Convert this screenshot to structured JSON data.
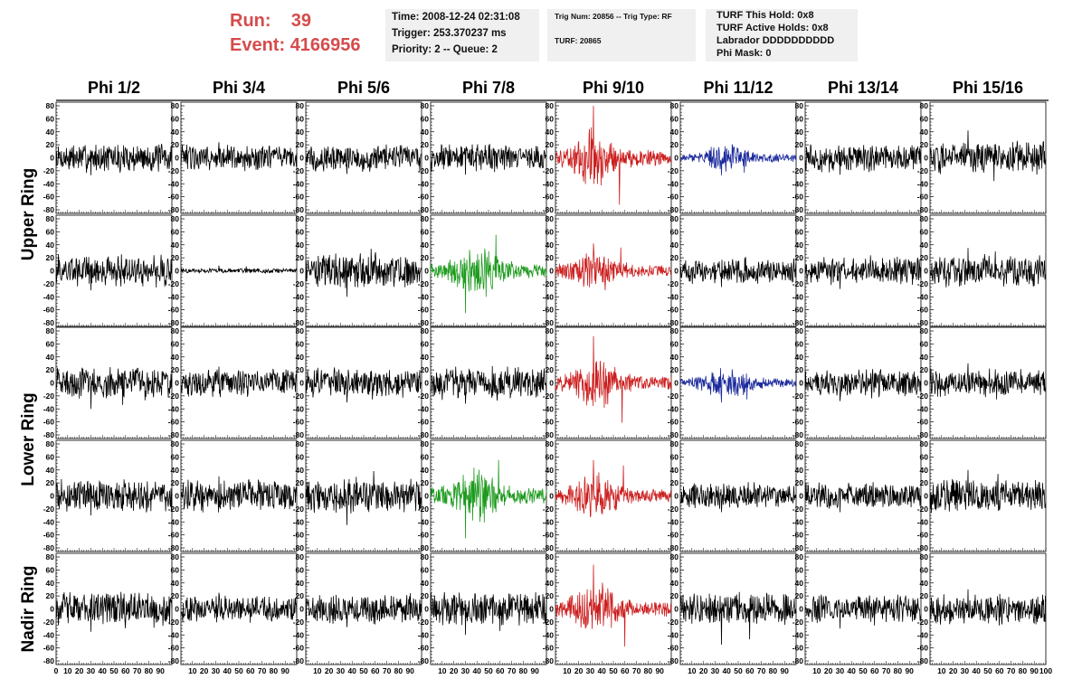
{
  "header": {
    "run_label": "Run:",
    "run_value": "39",
    "event_label": "Event:",
    "event_value": "4166956",
    "time_line": "Time: 2008-12-24 02:31:08",
    "trigger_line": "Trigger: 253.370237 ms",
    "priority_line": "Priority: 2 -- Queue: 2",
    "trig_num_line": "Trig Num: 20856 -- Trig Type: RF",
    "turf_line": "TURF: 20865",
    "turf_this_hold_line": "TURF This Hold: 0x8",
    "turf_active_holds_line": "TURF Active Holds: 0x8",
    "labrador_line": "Labrador DDDDDDDDDD",
    "phi_mask_line": "Phi Mask: 0"
  },
  "colors": {
    "run_text": "#d64b4b",
    "info_box_bg": "#f0f0f0",
    "trace_default": "#000000",
    "trace_red": "#cc1f1f",
    "trace_green": "#1d9a1d",
    "trace_blue": "#1c2a9c"
  },
  "chart_data": {
    "type": "line",
    "description_of_layout": "5 rows x 8 columns of waveform panels",
    "columns": [
      "Phi 1/2",
      "Phi 3/4",
      "Phi 5/6",
      "Phi 7/8",
      "Phi 9/10",
      "Phi 11/12",
      "Phi 13/14",
      "Phi 15/16"
    ],
    "ring_labels": [
      {
        "label": "Upper Ring",
        "rows": [
          0,
          1
        ]
      },
      {
        "label": "Lower Ring",
        "rows": [
          2,
          3
        ]
      },
      {
        "label": "Nadir Ring",
        "rows": [
          4
        ]
      }
    ],
    "xlim": [
      0,
      100
    ],
    "ylim": [
      -80,
      80
    ],
    "y_ticks": [
      80,
      60,
      40,
      20,
      0,
      -20,
      -40,
      -60,
      -80
    ],
    "y_tick_labels": [
      "80",
      "60",
      "40",
      "20",
      "0",
      "-20",
      "-40",
      "-60",
      "-80"
    ],
    "x_ticks": [
      0,
      10,
      20,
      30,
      40,
      50,
      60,
      70,
      80,
      90,
      100
    ],
    "x_tick_labels": [
      "0",
      "10",
      "20",
      "30",
      "40",
      "50",
      "60",
      "70",
      "80",
      "90",
      "100"
    ],
    "grid": false,
    "panels": [
      [
        {
          "color": "black",
          "amp": 18,
          "peak": 27
        },
        {
          "color": "black",
          "amp": 16,
          "peak": 24
        },
        {
          "color": "black",
          "amp": 17,
          "peak": 25
        },
        {
          "color": "black",
          "amp": 17,
          "peak": 26
        },
        {
          "color": "red",
          "amp": 30,
          "peak": 85,
          "burst_center": 35
        },
        {
          "color": "blue",
          "amp": 15,
          "peak": 27,
          "burst_center": 40
        },
        {
          "color": "black",
          "amp": 17,
          "peak": 26
        },
        {
          "color": "black",
          "amp": 20,
          "peak": 42
        }
      ],
      [
        {
          "color": "black",
          "amp": 20,
          "peak": 30
        },
        {
          "color": "black",
          "amp": 3,
          "peak": 8
        },
        {
          "color": "black",
          "amp": 22,
          "peak": 40
        },
        {
          "color": "green",
          "amp": 28,
          "peak": 65,
          "burst_center": 40
        },
        {
          "color": "red",
          "amp": 22,
          "peak": 42,
          "burst_center": 35
        },
        {
          "color": "black",
          "amp": 16,
          "peak": 25
        },
        {
          "color": "black",
          "amp": 17,
          "peak": 28
        },
        {
          "color": "black",
          "amp": 20,
          "peak": 35
        }
      ],
      [
        {
          "color": "black",
          "amp": 20,
          "peak": 40
        },
        {
          "color": "black",
          "amp": 17,
          "peak": 25
        },
        {
          "color": "black",
          "amp": 18,
          "peak": 30
        },
        {
          "color": "black",
          "amp": 20,
          "peak": 32
        },
        {
          "color": "red",
          "amp": 28,
          "peak": 72,
          "burst_center": 35
        },
        {
          "color": "blue",
          "amp": 18,
          "peak": 30,
          "burst_center": 40
        },
        {
          "color": "black",
          "amp": 17,
          "peak": 28
        },
        {
          "color": "black",
          "amp": 17,
          "peak": 30
        }
      ],
      [
        {
          "color": "black",
          "amp": 20,
          "peak": 30
        },
        {
          "color": "black",
          "amp": 20,
          "peak": 30
        },
        {
          "color": "black",
          "amp": 22,
          "peak": 45
        },
        {
          "color": "green",
          "amp": 30,
          "peak": 65,
          "burst_center": 40
        },
        {
          "color": "red",
          "amp": 25,
          "peak": 55,
          "burst_center": 35
        },
        {
          "color": "black",
          "amp": 16,
          "peak": 25
        },
        {
          "color": "black",
          "amp": 17,
          "peak": 25
        },
        {
          "color": "black",
          "amp": 20,
          "peak": 40
        }
      ],
      [
        {
          "color": "black",
          "amp": 22,
          "peak": 35
        },
        {
          "color": "black",
          "amp": 16,
          "peak": 25
        },
        {
          "color": "black",
          "amp": 18,
          "peak": 28
        },
        {
          "color": "black",
          "amp": 22,
          "peak": 40
        },
        {
          "color": "red",
          "amp": 28,
          "peak": 68,
          "burst_center": 35
        },
        {
          "color": "black",
          "amp": 20,
          "peak": 55
        },
        {
          "color": "black",
          "amp": 17,
          "peak": 30
        },
        {
          "color": "black",
          "amp": 19,
          "peak": 30
        }
      ]
    ]
  }
}
